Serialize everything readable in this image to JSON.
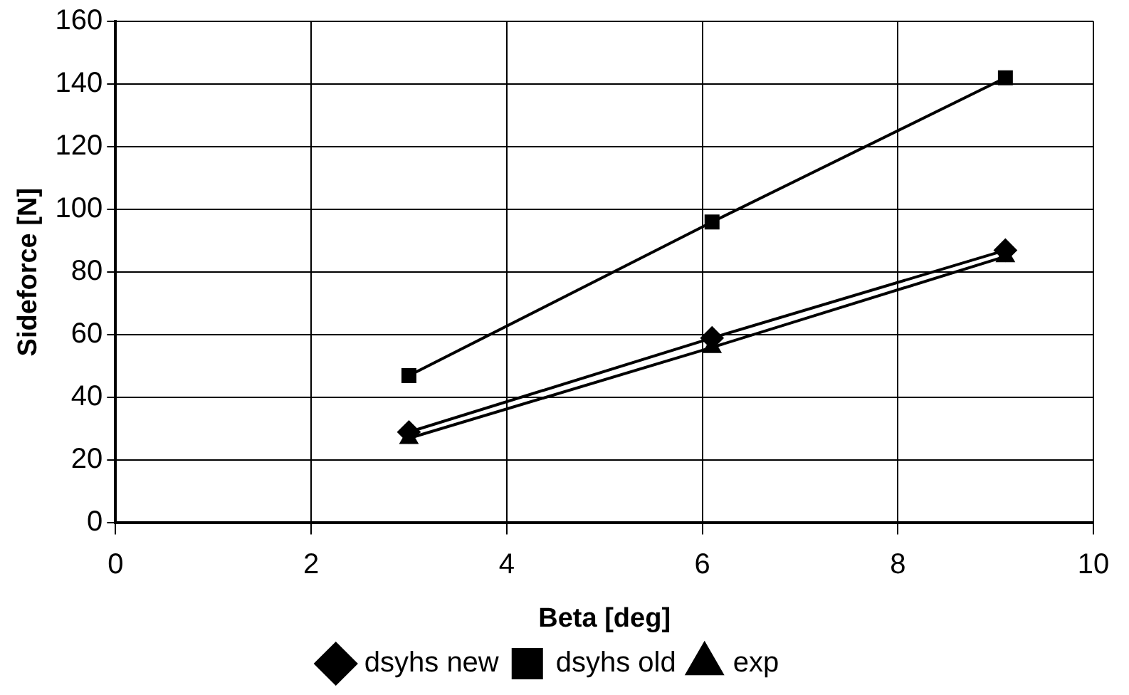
{
  "chart_data": {
    "type": "line",
    "xlabel": "Beta [deg]",
    "ylabel": "Sideforce [N]",
    "xlim": [
      0,
      10
    ],
    "xticks": [
      0,
      2,
      4,
      6,
      8,
      10
    ],
    "ylim": [
      0,
      160
    ],
    "yticks": [
      0,
      20,
      40,
      60,
      80,
      100,
      120,
      140,
      160
    ],
    "grid": true,
    "legend": "bottom",
    "line_style": "solid",
    "series": [
      {
        "name": "dsyhs new",
        "color": "#000000",
        "marker": "diamond",
        "x": [
          3,
          6.1,
          9.1
        ],
        "values": [
          29,
          59,
          87
        ]
      },
      {
        "name": "dsyhs old",
        "color": "#000000",
        "marker": "square",
        "x": [
          3,
          6.1,
          9.1
        ],
        "values": [
          47,
          96,
          142
        ]
      },
      {
        "name": "exp",
        "color": "#000000",
        "marker": "triangle",
        "x": [
          3,
          6.1,
          9.1
        ],
        "values": [
          27,
          56,
          85
        ]
      }
    ]
  }
}
